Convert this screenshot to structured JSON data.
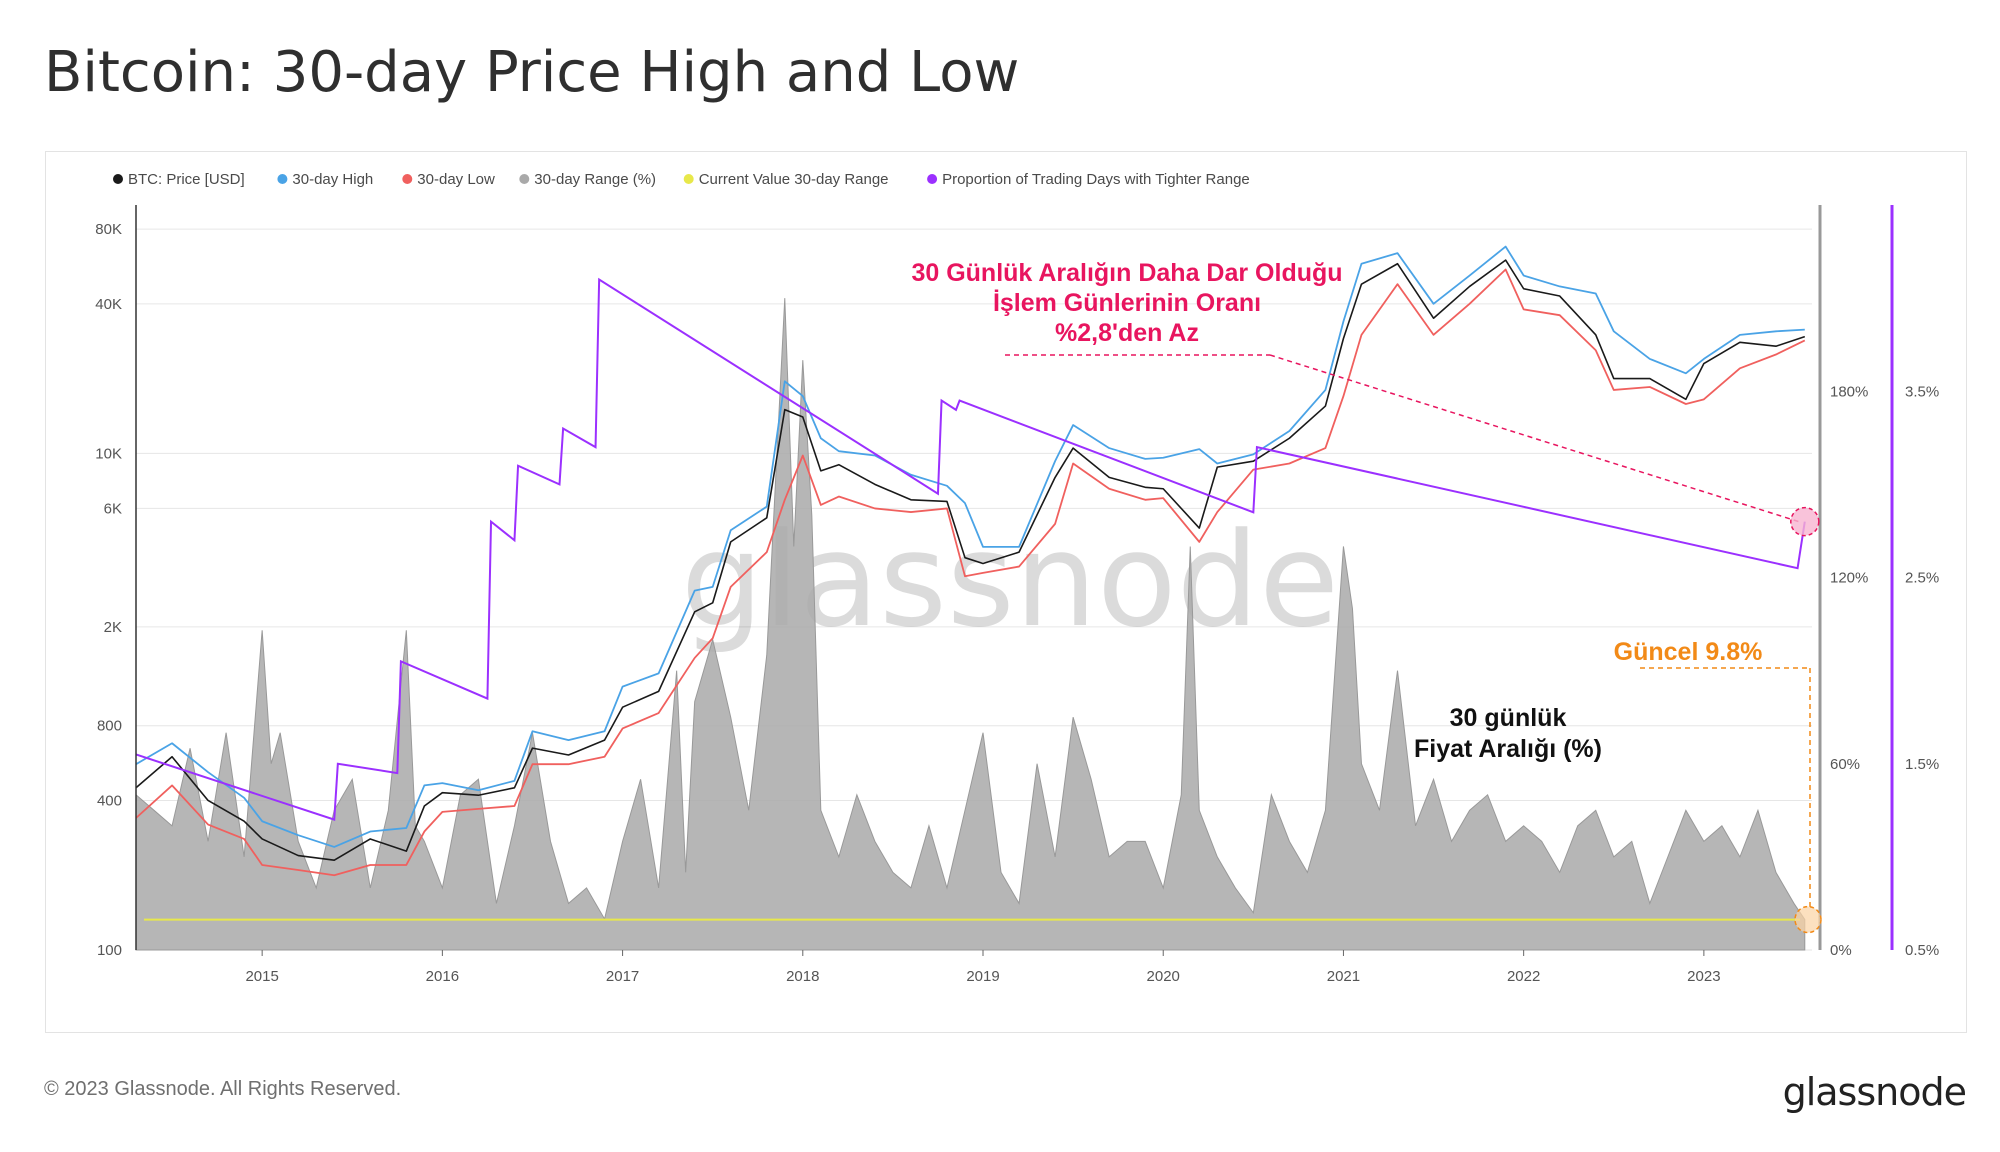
{
  "title": "Bitcoin: 30-day Price High and Low",
  "footer": "© 2023 Glassnode. All Rights Reserved.",
  "brand": "glassnode",
  "watermark": "glassnode",
  "colors": {
    "price": "#1a1a1a",
    "high": "#4aa3e6",
    "low": "#f0605e",
    "range": "#a9a9a9",
    "current": "#e8e84a",
    "tighter": "#9b30ff",
    "annotation_pink": "#e8155f",
    "annotation_orange": "#f28a17"
  },
  "legend": [
    {
      "label": "BTC: Price [USD]",
      "color": "#1a1a1a"
    },
    {
      "label": "30-day High",
      "color": "#4aa3e6"
    },
    {
      "label": "30-day Low",
      "color": "#f0605e"
    },
    {
      "label": "30-day Range (%)",
      "color": "#a9a9a9"
    },
    {
      "label": "Current Value 30-day Range",
      "color": "#e8e84a"
    },
    {
      "label": "Proportion of Trading Days with Tighter Range",
      "color": "#9b30ff"
    }
  ],
  "annotations": {
    "tighter_line1": "30 Günlük Aralığın Daha Dar Olduğu",
    "tighter_line2": "İşlem Günlerinin Oranı",
    "tighter_line3": "%2,8'den Az",
    "current": "Güncel 9.8%",
    "range_line1": "30 günlük",
    "range_line2": "Fiyat Aralığı (%)"
  },
  "chart_data": {
    "type": "line",
    "y_scale": "log",
    "ylim": [
      100,
      100000
    ],
    "y_ticks": [
      "100",
      "400",
      "800",
      "2K",
      "6K",
      "10K",
      "40K",
      "80K"
    ],
    "y_tick_values": [
      100,
      400,
      800,
      2000,
      6000,
      10000,
      40000,
      80000
    ],
    "x_ticks": [
      "2015",
      "2016",
      "2017",
      "2018",
      "2019",
      "2020",
      "2021",
      "2022",
      "2023"
    ],
    "y2_ticks": [
      "0%",
      "60%",
      "120%",
      "180%"
    ],
    "y2_tick_values": [
      0,
      60,
      120,
      180
    ],
    "y2_lim": [
      0,
      240
    ],
    "y3_ticks": [
      "0.5%",
      "1.5%",
      "2.5%",
      "3.5%"
    ],
    "y3_tick_values": [
      0.5,
      1.5,
      2.5,
      3.5
    ],
    "y3_lim": [
      0.5,
      4.5
    ],
    "x_range": [
      2014.3,
      2023.6
    ],
    "current_range_value": 9.8,
    "series": [
      {
        "name": "BTC: Price [USD]",
        "x": [
          2014.3,
          2014.5,
          2014.7,
          2014.9,
          2015.0,
          2015.2,
          2015.4,
          2015.6,
          2015.8,
          2015.9,
          2016.0,
          2016.2,
          2016.4,
          2016.5,
          2016.7,
          2016.9,
          2017.0,
          2017.2,
          2017.4,
          2017.5,
          2017.6,
          2017.8,
          2017.9,
          2018.0,
          2018.1,
          2018.2,
          2018.4,
          2018.6,
          2018.8,
          2018.9,
          2019.0,
          2019.2,
          2019.4,
          2019.5,
          2019.7,
          2019.9,
          2020.0,
          2020.2,
          2020.3,
          2020.5,
          2020.7,
          2020.9,
          2021.0,
          2021.1,
          2021.3,
          2021.5,
          2021.7,
          2021.9,
          2022.0,
          2022.2,
          2022.4,
          2022.5,
          2022.7,
          2022.9,
          2023.0,
          2023.2,
          2023.4,
          2023.56
        ],
        "values": [
          450,
          600,
          400,
          330,
          280,
          240,
          230,
          280,
          250,
          380,
          430,
          420,
          450,
          650,
          610,
          700,
          950,
          1100,
          2300,
          2500,
          4400,
          5500,
          15000,
          14000,
          8500,
          9000,
          7500,
          6500,
          6400,
          3800,
          3600,
          4000,
          8000,
          10500,
          8000,
          7300,
          7200,
          5000,
          8800,
          9300,
          11500,
          15500,
          29000,
          48000,
          58000,
          35000,
          47000,
          60000,
          46000,
          43000,
          30000,
          20000,
          20000,
          16500,
          23000,
          28000,
          27000,
          29500
        ]
      },
      {
        "name": "30-day High",
        "x": [
          2014.3,
          2014.5,
          2014.7,
          2014.9,
          2015.0,
          2015.2,
          2015.4,
          2015.6,
          2015.8,
          2015.9,
          2016.0,
          2016.2,
          2016.4,
          2016.5,
          2016.7,
          2016.9,
          2017.0,
          2017.2,
          2017.4,
          2017.5,
          2017.6,
          2017.8,
          2017.9,
          2018.0,
          2018.1,
          2018.2,
          2018.4,
          2018.6,
          2018.8,
          2018.9,
          2019.0,
          2019.2,
          2019.4,
          2019.5,
          2019.7,
          2019.9,
          2020.0,
          2020.2,
          2020.3,
          2020.5,
          2020.7,
          2020.9,
          2021.0,
          2021.1,
          2021.3,
          2021.5,
          2021.7,
          2021.9,
          2022.0,
          2022.2,
          2022.4,
          2022.5,
          2022.7,
          2022.9,
          2023.0,
          2023.2,
          2023.4,
          2023.56
        ],
        "values": [
          560,
          680,
          520,
          410,
          330,
          290,
          260,
          300,
          310,
          460,
          470,
          440,
          480,
          760,
          700,
          760,
          1150,
          1300,
          2800,
          2900,
          4900,
          6100,
          19500,
          17000,
          11500,
          10200,
          9800,
          8200,
          7400,
          6300,
          4200,
          4200,
          9300,
          13000,
          10500,
          9500,
          9600,
          10400,
          9100,
          9900,
          12300,
          18000,
          34000,
          58000,
          64000,
          40000,
          52000,
          68000,
          52000,
          47000,
          44000,
          31000,
          24000,
          21000,
          24000,
          30000,
          31000,
          31500
        ]
      },
      {
        "name": "30-day Low",
        "x": [
          2014.3,
          2014.5,
          2014.7,
          2014.9,
          2015.0,
          2015.2,
          2015.4,
          2015.6,
          2015.8,
          2015.9,
          2016.0,
          2016.2,
          2016.4,
          2016.5,
          2016.7,
          2016.9,
          2017.0,
          2017.2,
          2017.4,
          2017.5,
          2017.6,
          2017.8,
          2017.9,
          2018.0,
          2018.1,
          2018.2,
          2018.4,
          2018.6,
          2018.8,
          2018.9,
          2019.0,
          2019.2,
          2019.4,
          2019.5,
          2019.7,
          2019.9,
          2020.0,
          2020.2,
          2020.3,
          2020.5,
          2020.7,
          2020.9,
          2021.0,
          2021.1,
          2021.3,
          2021.5,
          2021.7,
          2021.9,
          2022.0,
          2022.2,
          2022.4,
          2022.5,
          2022.7,
          2022.9,
          2023.0,
          2023.2,
          2023.4,
          2023.56
        ],
        "values": [
          340,
          460,
          320,
          280,
          220,
          210,
          200,
          220,
          220,
          300,
          360,
          370,
          380,
          560,
          560,
          600,
          780,
          900,
          1500,
          1800,
          2900,
          4000,
          6500,
          9800,
          6200,
          6700,
          6000,
          5800,
          6000,
          3200,
          3300,
          3500,
          5200,
          9100,
          7200,
          6500,
          6600,
          4400,
          5800,
          8600,
          9100,
          10500,
          17000,
          30000,
          48000,
          30000,
          40000,
          55000,
          38000,
          36000,
          26000,
          18000,
          18500,
          15800,
          16500,
          22000,
          25000,
          28500
        ]
      },
      {
        "name": "30-day Range (%)",
        "x": [
          2014.3,
          2014.4,
          2014.5,
          2014.6,
          2014.7,
          2014.8,
          2014.9,
          2015.0,
          2015.05,
          2015.1,
          2015.2,
          2015.3,
          2015.4,
          2015.5,
          2015.6,
          2015.7,
          2015.8,
          2015.85,
          2015.9,
          2016.0,
          2016.1,
          2016.2,
          2016.3,
          2016.4,
          2016.5,
          2016.6,
          2016.7,
          2016.8,
          2016.9,
          2017.0,
          2017.1,
          2017.2,
          2017.3,
          2017.35,
          2017.4,
          2017.5,
          2017.6,
          2017.7,
          2017.8,
          2017.9,
          2017.95,
          2018.0,
          2018.05,
          2018.1,
          2018.2,
          2018.3,
          2018.4,
          2018.5,
          2018.6,
          2018.7,
          2018.8,
          2018.9,
          2019.0,
          2019.1,
          2019.2,
          2019.3,
          2019.4,
          2019.5,
          2019.6,
          2019.7,
          2019.8,
          2019.9,
          2020.0,
          2020.1,
          2020.15,
          2020.2,
          2020.3,
          2020.4,
          2020.5,
          2020.6,
          2020.7,
          2020.8,
          2020.9,
          2021.0,
          2021.05,
          2021.1,
          2021.2,
          2021.3,
          2021.4,
          2021.5,
          2021.6,
          2021.7,
          2021.8,
          2021.9,
          2022.0,
          2022.1,
          2022.2,
          2022.3,
          2022.4,
          2022.5,
          2022.6,
          2022.7,
          2022.8,
          2022.9,
          2023.0,
          2023.1,
          2023.2,
          2023.3,
          2023.4,
          2023.5,
          2023.56
        ],
        "values": [
          50,
          45,
          40,
          65,
          35,
          70,
          30,
          103,
          60,
          70,
          35,
          20,
          45,
          55,
          20,
          45,
          103,
          40,
          35,
          20,
          50,
          55,
          15,
          40,
          70,
          35,
          15,
          20,
          10,
          35,
          55,
          20,
          90,
          25,
          80,
          100,
          75,
          45,
          95,
          210,
          130,
          190,
          140,
          45,
          30,
          50,
          35,
          25,
          20,
          40,
          20,
          45,
          70,
          25,
          15,
          60,
          30,
          75,
          55,
          30,
          35,
          35,
          20,
          50,
          130,
          45,
          30,
          20,
          12,
          50,
          35,
          25,
          45,
          130,
          110,
          60,
          45,
          90,
          40,
          55,
          35,
          45,
          50,
          35,
          40,
          35,
          25,
          40,
          45,
          30,
          35,
          15,
          30,
          45,
          35,
          40,
          30,
          45,
          25,
          15,
          9.8
        ]
      },
      {
        "name": "Proportion of Trading Days with Tighter Range",
        "x": [
          2014.3,
          2015.4,
          2015.42,
          2015.75,
          2015.77,
          2016.25,
          2016.27,
          2016.4,
          2016.42,
          2016.65,
          2016.67,
          2016.85,
          2016.87,
          2018.75,
          2018.77,
          2018.85,
          2018.87,
          2020.5,
          2020.52,
          2023.52,
          2023.56
        ],
        "values": [
          1.55,
          1.2,
          1.5,
          1.45,
          2.05,
          1.85,
          2.8,
          2.7,
          3.1,
          3.0,
          3.3,
          3.2,
          4.1,
          2.95,
          3.45,
          3.4,
          3.45,
          2.85,
          3.2,
          2.55,
          2.8
        ]
      }
    ]
  }
}
